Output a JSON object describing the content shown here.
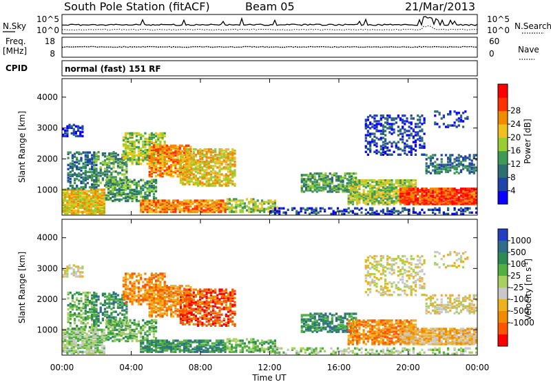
{
  "header": {
    "title": "South Pole Station (fitACF)",
    "beam": "Beam 05",
    "date": "21/Mar/2013"
  },
  "chart_data": [
    {
      "type": "line",
      "name": "noise-panel",
      "left_label": "N.Sky",
      "right_label": "N.Search",
      "left_ticks": [
        "10^5",
        "10^0"
      ],
      "right_ticks": [
        "10^5",
        "10^0"
      ]
    },
    {
      "type": "line",
      "name": "freq-nave-panel",
      "left_label_line1": "Freq.",
      "left_label_line2": "[MHz]",
      "left_ticks": [
        "18",
        "8"
      ],
      "right_label": "Nave",
      "right_ticks": [
        "60",
        "0"
      ]
    },
    {
      "type": "table",
      "name": "cpid-panel",
      "label": "CPID",
      "text": "normal (fast) 151 RF"
    },
    {
      "type": "heatmap",
      "name": "power-panel",
      "ylabel": "Slant Range [km]",
      "yticks": [
        "1000",
        "2000",
        "3000",
        "4000"
      ],
      "ylim": [
        180,
        4600
      ],
      "colorbar_label": "Power [dB]",
      "colorbar_ticks": [
        "4",
        "8",
        "12",
        "16",
        "20",
        "24",
        "28"
      ],
      "colors": [
        "#0a00ff",
        "#1f43aa",
        "#2e6e6e",
        "#3f9a55",
        "#9acd32",
        "#f0c020",
        "#f28a00",
        "#ff3300",
        "#ff0000"
      ],
      "xlim_hours": [
        0,
        24
      ]
    },
    {
      "type": "heatmap",
      "name": "velocity-panel",
      "ylabel": "Slant Range [km]",
      "yticks": [
        "1000",
        "2000",
        "3000",
        "4000"
      ],
      "ylim": [
        180,
        4600
      ],
      "colorbar_label": "Velocity [m s",
      "colorbar_label_sup": "-1",
      "colorbar_label_end": "]",
      "colorbar_ticks": [
        "1000",
        "500",
        "100",
        "25",
        "-25",
        "-100",
        "-500",
        "-1000"
      ],
      "colors": [
        "#2040c0",
        "#2e6e8a",
        "#2e8a55",
        "#50b040",
        "#a8d060",
        "#c8c8c8",
        "#f0b020",
        "#f28a00",
        "#ff5500",
        "#ff0000"
      ],
      "xlim_hours": [
        0,
        24
      ]
    }
  ],
  "xaxis": {
    "label": "Time UT",
    "ticks": [
      "00:00",
      "04:00",
      "08:00",
      "12:00",
      "16:00",
      "20:00",
      "00:00"
    ]
  }
}
